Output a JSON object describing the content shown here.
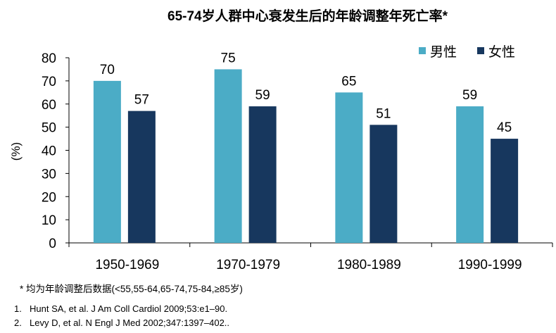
{
  "chart_data": {
    "type": "bar",
    "title": "65-74岁人群中心衰发生后的年龄调整年死亡率*",
    "ylabel": "(%)",
    "xlabel": "",
    "ylim": [
      0,
      80
    ],
    "yticks": [
      0,
      10,
      20,
      30,
      40,
      50,
      60,
      70,
      80
    ],
    "grid": false,
    "legend_position": "top-right",
    "categories": [
      "1950-1969",
      "1970-1979",
      "1980-1989",
      "1990-1999"
    ],
    "series": [
      {
        "name": "男性",
        "values": [
          70,
          75,
          65,
          59
        ],
        "color": "#4BACC6"
      },
      {
        "name": "女性",
        "values": [
          57,
          59,
          51,
          45
        ],
        "color": "#17375E"
      }
    ]
  },
  "footnote": "* 均为年龄调整后数据(<55,55-64,65-74,75-84,≥85岁)",
  "references": [
    {
      "num": "1.",
      "text": "Hunt SA, et al. J Am Coll Cardiol 2009;53:e1–90."
    },
    {
      "num": "2.",
      "text": "Levy D, et al. N Engl J Med 2002;347:1397–402.."
    }
  ]
}
